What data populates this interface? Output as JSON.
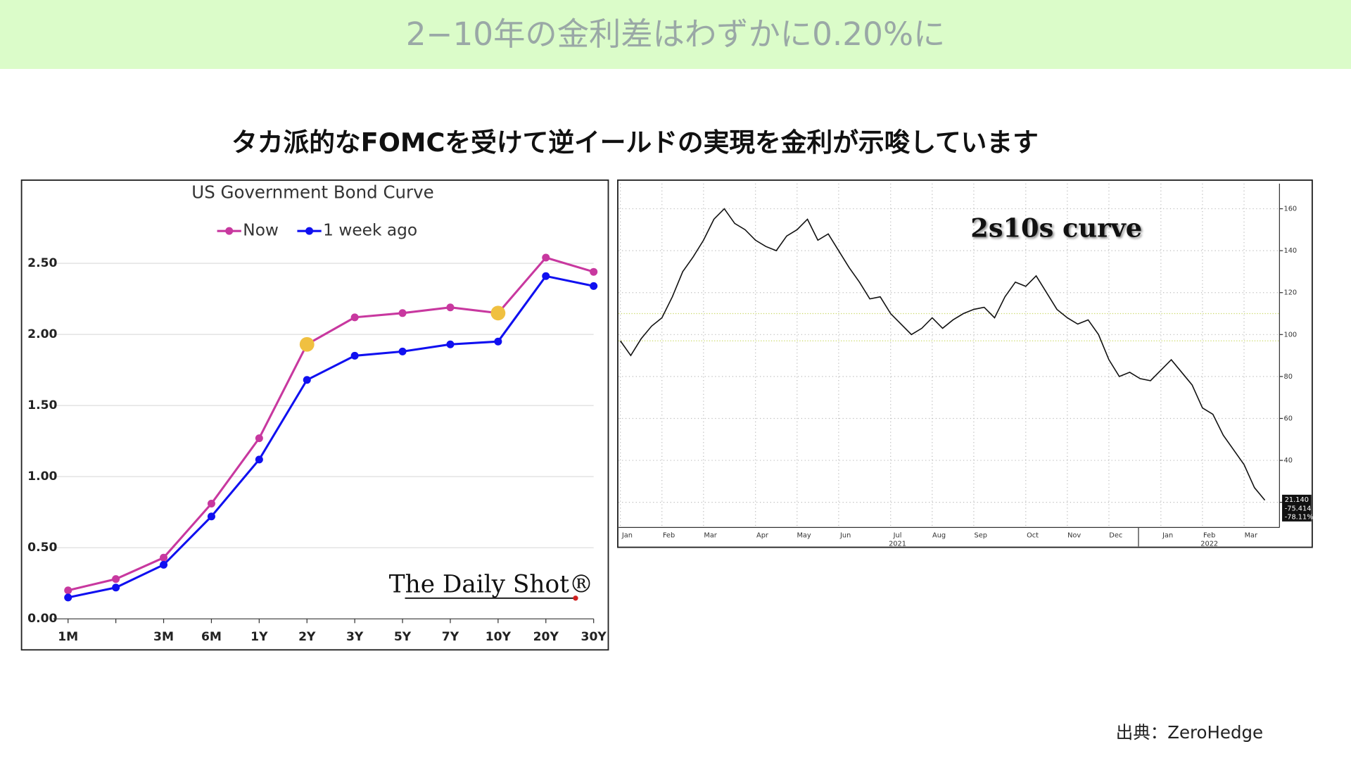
{
  "title": "2−10年の金利差はわずかに0.20%に",
  "subtitle": "タカ派的なFOMCを受けて逆イールドの実現を金利が示唆しています",
  "source": "出典：ZeroHedge",
  "chart_data": [
    {
      "type": "line",
      "title": "US Government Bond Curve",
      "watermark": "The Daily Shot®",
      "categories": [
        "1M",
        null,
        "3M",
        "6M",
        "1Y",
        "2Y",
        "3Y",
        "5Y",
        "7Y",
        "10Y",
        "20Y",
        "30Y"
      ],
      "series": [
        {
          "name": "Now",
          "color": "#c8389f",
          "values": [
            0.2,
            0.28,
            0.43,
            0.81,
            1.27,
            1.93,
            2.12,
            2.15,
            2.19,
            2.15,
            2.54,
            2.44
          ]
        },
        {
          "name": "1 week ago",
          "color": "#1010f0",
          "values": [
            0.15,
            0.22,
            0.38,
            0.72,
            1.12,
            1.68,
            1.85,
            1.88,
            1.93,
            1.95,
            2.41,
            2.34
          ]
        }
      ],
      "highlight": {
        "color": "#f0c040",
        "series": 0,
        "points": [
          5,
          9
        ]
      },
      "ylim": [
        0,
        3.0
      ],
      "yticks": [
        {
          "value": 0,
          "label": "0.00"
        },
        {
          "value": 0.5,
          "label": "0.50"
        },
        {
          "value": 1,
          "label": "1.00"
        },
        {
          "value": 1.5,
          "label": "1.50"
        },
        {
          "value": 2,
          "label": "2.00"
        },
        {
          "value": 2.5,
          "label": "2.50"
        }
      ],
      "grid": true,
      "legend": "top"
    },
    {
      "type": "line",
      "title": "2s10s curve",
      "categories": [
        "Jan",
        null,
        null,
        null,
        "Feb",
        null,
        null,
        null,
        "Mar",
        null,
        null,
        null,
        null,
        "Apr",
        null,
        null,
        null,
        "May",
        null,
        null,
        null,
        "Jun",
        null,
        null,
        null,
        null,
        "Jul",
        null,
        null,
        null,
        "Aug",
        null,
        null,
        null,
        "Sep",
        null,
        null,
        null,
        null,
        "Oct",
        null,
        null,
        null,
        "Nov",
        null,
        null,
        null,
        "Dec",
        null,
        null,
        null,
        null,
        "Jan",
        null,
        null,
        null,
        "Feb",
        null,
        null,
        null,
        "Mar",
        null,
        null
      ],
      "year_labels": [
        "2021",
        "2022"
      ],
      "series": [
        {
          "name": "2s10s",
          "color": "#111111",
          "values": [
            97,
            90,
            98,
            104,
            108,
            118,
            130,
            137,
            145,
            155,
            160,
            153,
            150,
            145,
            142,
            140,
            147,
            150,
            155,
            145,
            148,
            140,
            132,
            125,
            117,
            118,
            110,
            105,
            100,
            103,
            108,
            103,
            107,
            110,
            112,
            113,
            108,
            118,
            125,
            123,
            128,
            120,
            112,
            108,
            105,
            107,
            100,
            88,
            80,
            82,
            79,
            78,
            83,
            88,
            82,
            76,
            65,
            62,
            52,
            45,
            38,
            27,
            21
          ]
        }
      ],
      "reference_lines": [
        110,
        97
      ],
      "reference_color": "#c8d860",
      "last_labels": [
        "21.140",
        "-75.414",
        "-78.11%"
      ],
      "ylim": [
        8,
        172
      ],
      "yticks": [
        20,
        40,
        60,
        80,
        100,
        120,
        140,
        160
      ],
      "grid": true,
      "yaxis_side": "right"
    }
  ]
}
